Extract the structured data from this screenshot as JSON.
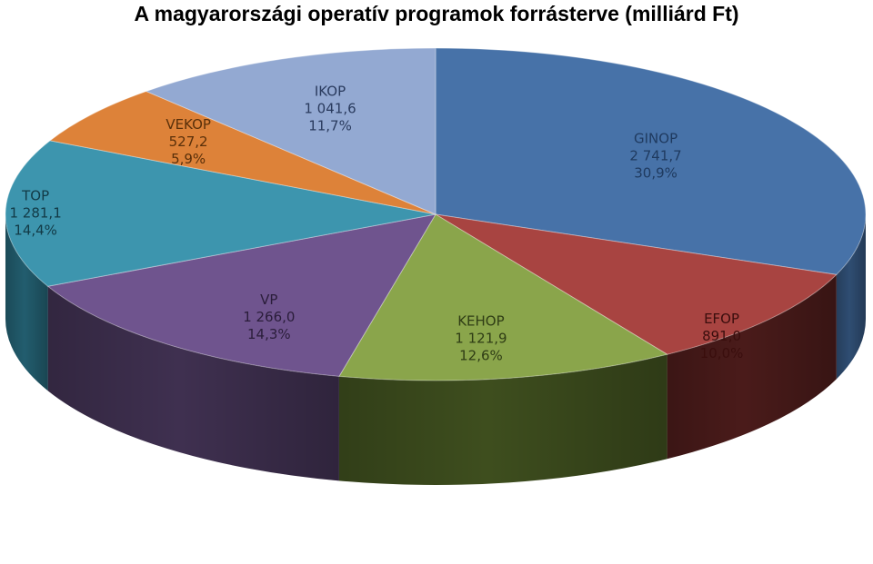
{
  "chart_data": {
    "type": "pie",
    "title": "A magyarországi operatív programok forrásterve (milliárd Ft)",
    "slices": [
      {
        "name": "GINOP",
        "value_text": "2 741,7",
        "percent_text": "30,9%",
        "value": 2741.7,
        "percent": 30.9,
        "color": "#4772A8",
        "side_color": "#2F4D72"
      },
      {
        "name": "EFOP",
        "value_text": "891,0",
        "percent_text": "10,0%",
        "value": 891.0,
        "percent": 10.0,
        "color": "#A84441",
        "side_color": "#4A1B1A"
      },
      {
        "name": "KEHOP",
        "value_text": "1 121,9",
        "percent_text": "12,6%",
        "value": 1121.9,
        "percent": 12.6,
        "color": "#8AA54B",
        "side_color": "#3E4E1E"
      },
      {
        "name": "VP",
        "value_text": "1 266,0",
        "percent_text": "14,3%",
        "value": 1266.0,
        "percent": 14.3,
        "color": "#6F548E",
        "side_color": "#3F3050"
      },
      {
        "name": "TOP",
        "value_text": "1 281,1",
        "percent_text": "14,4%",
        "value": 1281.1,
        "percent": 14.4,
        "color": "#3D95AE",
        "side_color": "#225D6E"
      },
      {
        "name": "VEKOP",
        "value_text": "527,2",
        "percent_text": "5,9%",
        "value": 527.2,
        "percent": 5.9,
        "color": "#DD8239",
        "side_color": "#8A4E1E"
      },
      {
        "name": "IKOP",
        "value_text": "1 041,6",
        "percent_text": "11,7%",
        "value": 1041.6,
        "percent": 11.7,
        "color": "#93A9D2",
        "side_color": "#5F7397"
      }
    ],
    "legend": "none",
    "style": "3d-pie"
  }
}
